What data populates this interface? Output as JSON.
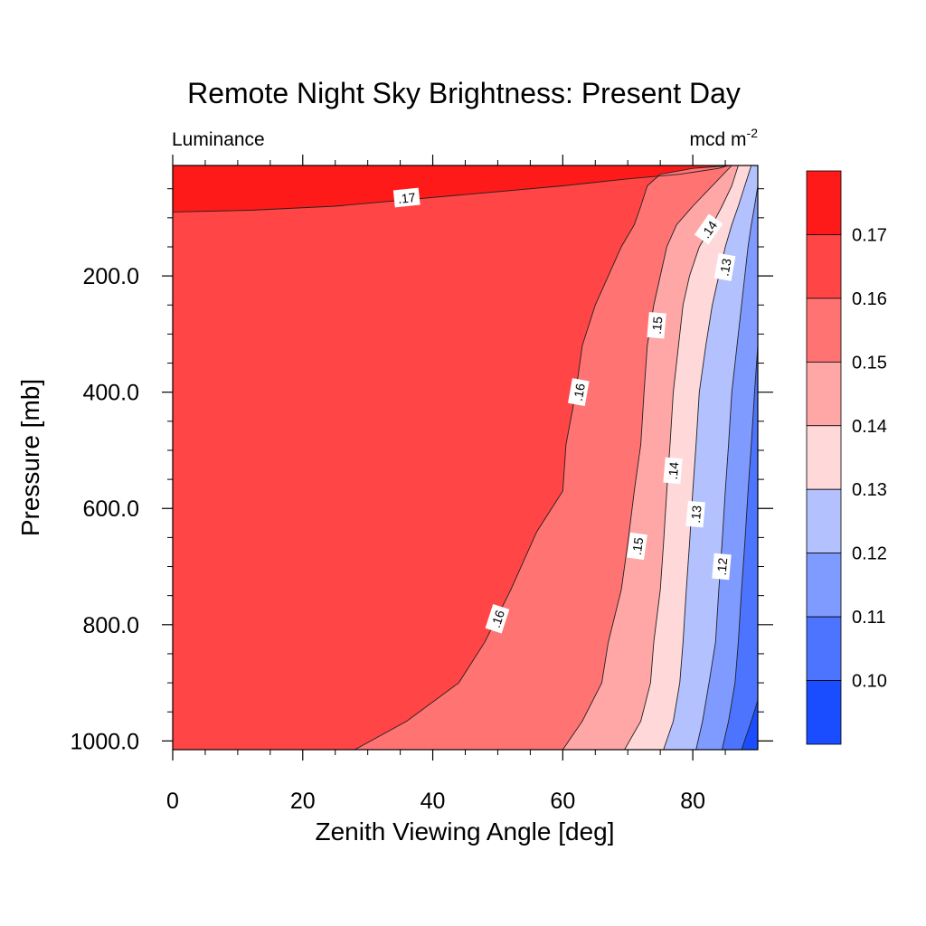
{
  "chart_data": {
    "type": "contour",
    "title": "Remote Night Sky Brightness: Present Day",
    "left_subtitle": "Luminance",
    "right_subtitle_base": "mcd m",
    "right_subtitle_sup": "-2",
    "xlabel": "Zenith Viewing Angle [deg]",
    "ylabel": "Pressure [mb]",
    "xlim": [
      0,
      90
    ],
    "ylim": [
      1015,
      10
    ],
    "x_ticks": [
      0,
      20,
      40,
      60,
      80
    ],
    "x_tick_labels": [
      "0",
      "20",
      "40",
      "60",
      "80"
    ],
    "y_ticks": [
      200,
      400,
      600,
      800,
      1000
    ],
    "y_tick_labels": [
      "200.0",
      "400.0",
      "600.0",
      "800.0",
      "1000.0"
    ],
    "contour_levels": [
      0.1,
      0.11,
      0.12,
      0.13,
      0.14,
      0.15,
      0.16,
      0.17
    ],
    "colorbar_labels": [
      "0.10",
      "0.11",
      "0.12",
      "0.13",
      "0.14",
      "0.15",
      "0.16",
      "0.17"
    ],
    "fill_colors": [
      "#1a4dff",
      "#4d74ff",
      "#809bff",
      "#b3c2ff",
      "#ffd9d9",
      "#ffa6a6",
      "#ff7373",
      "#ff4545",
      "#ff1a1a"
    ],
    "contours": [
      {
        "level": ".17",
        "points": [
          [
            0,
            90
          ],
          [
            12,
            87
          ],
          [
            25,
            80
          ],
          [
            35,
            70
          ],
          [
            45,
            60
          ],
          [
            60,
            45
          ],
          [
            70,
            33
          ],
          [
            78,
            25
          ],
          [
            84,
            15
          ],
          [
            85.5,
            10
          ]
        ]
      },
      {
        "level": ".16",
        "points": [
          [
            28,
            1015
          ],
          [
            36,
            966
          ],
          [
            44,
            900
          ],
          [
            48,
            830
          ],
          [
            52,
            740
          ],
          [
            56,
            640
          ],
          [
            60,
            570
          ],
          [
            60.5,
            490
          ],
          [
            62,
            400
          ],
          [
            63,
            320
          ],
          [
            65,
            250
          ],
          [
            67,
            200
          ],
          [
            69,
            150
          ],
          [
            71,
            112
          ],
          [
            72,
            80
          ],
          [
            73,
            45
          ],
          [
            75,
            25
          ],
          [
            80,
            15
          ],
          [
            86,
            10
          ]
        ]
      },
      {
        "level": ".15",
        "points": [
          [
            60,
            1015
          ],
          [
            63,
            966
          ],
          [
            66,
            900
          ],
          [
            67,
            830
          ],
          [
            69,
            740
          ],
          [
            70,
            660
          ],
          [
            71,
            570
          ],
          [
            72,
            490
          ],
          [
            72.5,
            400
          ],
          [
            73,
            320
          ],
          [
            74,
            250
          ],
          [
            75,
            200
          ],
          [
            76,
            150
          ],
          [
            77.5,
            112
          ],
          [
            80,
            80
          ],
          [
            83,
            45
          ],
          [
            86,
            10
          ]
        ]
      },
      {
        "level": ".14",
        "points": [
          [
            69.5,
            1015
          ],
          [
            72,
            966
          ],
          [
            73.5,
            900
          ],
          [
            74,
            830
          ],
          [
            75,
            740
          ],
          [
            75.5,
            660
          ],
          [
            76,
            570
          ],
          [
            76.5,
            490
          ],
          [
            77,
            400
          ],
          [
            77.8,
            320
          ],
          [
            78.5,
            250
          ],
          [
            79.5,
            200
          ],
          [
            81,
            150
          ],
          [
            83,
            112
          ],
          [
            84.5,
            80
          ],
          [
            86,
            45
          ],
          [
            87,
            10
          ]
        ]
      },
      {
        "level": ".13",
        "points": [
          [
            75.5,
            1015
          ],
          [
            77,
            966
          ],
          [
            78,
            900
          ],
          [
            78.5,
            830
          ],
          [
            79,
            740
          ],
          [
            79.5,
            660
          ],
          [
            80,
            570
          ],
          [
            80.5,
            490
          ],
          [
            81,
            400
          ],
          [
            82,
            320
          ],
          [
            83,
            250
          ],
          [
            84,
            200
          ],
          [
            85,
            150
          ],
          [
            86,
            112
          ],
          [
            87,
            80
          ],
          [
            88,
            45
          ],
          [
            89,
            10
          ]
        ]
      },
      {
        "level": ".12",
        "points": [
          [
            80.5,
            1015
          ],
          [
            81.5,
            966
          ],
          [
            82.5,
            900
          ],
          [
            83.5,
            830
          ],
          [
            84,
            740
          ],
          [
            84.5,
            660
          ],
          [
            85,
            570
          ],
          [
            85.5,
            490
          ],
          [
            86,
            400
          ],
          [
            86.8,
            320
          ],
          [
            87.5,
            250
          ],
          [
            88,
            200
          ],
          [
            88.5,
            150
          ],
          [
            89,
            112
          ],
          [
            89.5,
            80
          ],
          [
            90,
            45
          ]
        ]
      },
      {
        "level": ".11",
        "points": [
          [
            84.5,
            1015
          ],
          [
            85.5,
            966
          ],
          [
            86.5,
            900
          ],
          [
            87,
            830
          ],
          [
            87.5,
            740
          ],
          [
            88,
            660
          ],
          [
            88.5,
            570
          ],
          [
            89,
            490
          ],
          [
            89.5,
            400
          ],
          [
            90,
            320
          ]
        ]
      },
      {
        "level": ".10",
        "points": [
          [
            87.5,
            1015
          ],
          [
            89,
            966
          ],
          [
            90,
            930
          ]
        ]
      }
    ],
    "inline_labels": [
      {
        "text": ".17",
        "x": 36,
        "y": 66,
        "angle": -6
      },
      {
        "text": ".16",
        "x": 62.5,
        "y": 400,
        "angle": -80
      },
      {
        "text": ".16",
        "x": 50,
        "y": 790,
        "angle": -72
      },
      {
        "text": ".15",
        "x": 74.5,
        "y": 285,
        "angle": -85
      },
      {
        "text": ".15",
        "x": 71.5,
        "y": 665,
        "angle": -82
      },
      {
        "text": ".14",
        "x": 82.5,
        "y": 120,
        "angle": -55
      },
      {
        "text": ".14",
        "x": 77,
        "y": 535,
        "angle": -85
      },
      {
        "text": ".13",
        "x": 85,
        "y": 185,
        "angle": -80
      },
      {
        "text": ".13",
        "x": 80.5,
        "y": 610,
        "angle": -85
      },
      {
        "text": ".12",
        "x": 84.5,
        "y": 700,
        "angle": -85
      }
    ]
  }
}
